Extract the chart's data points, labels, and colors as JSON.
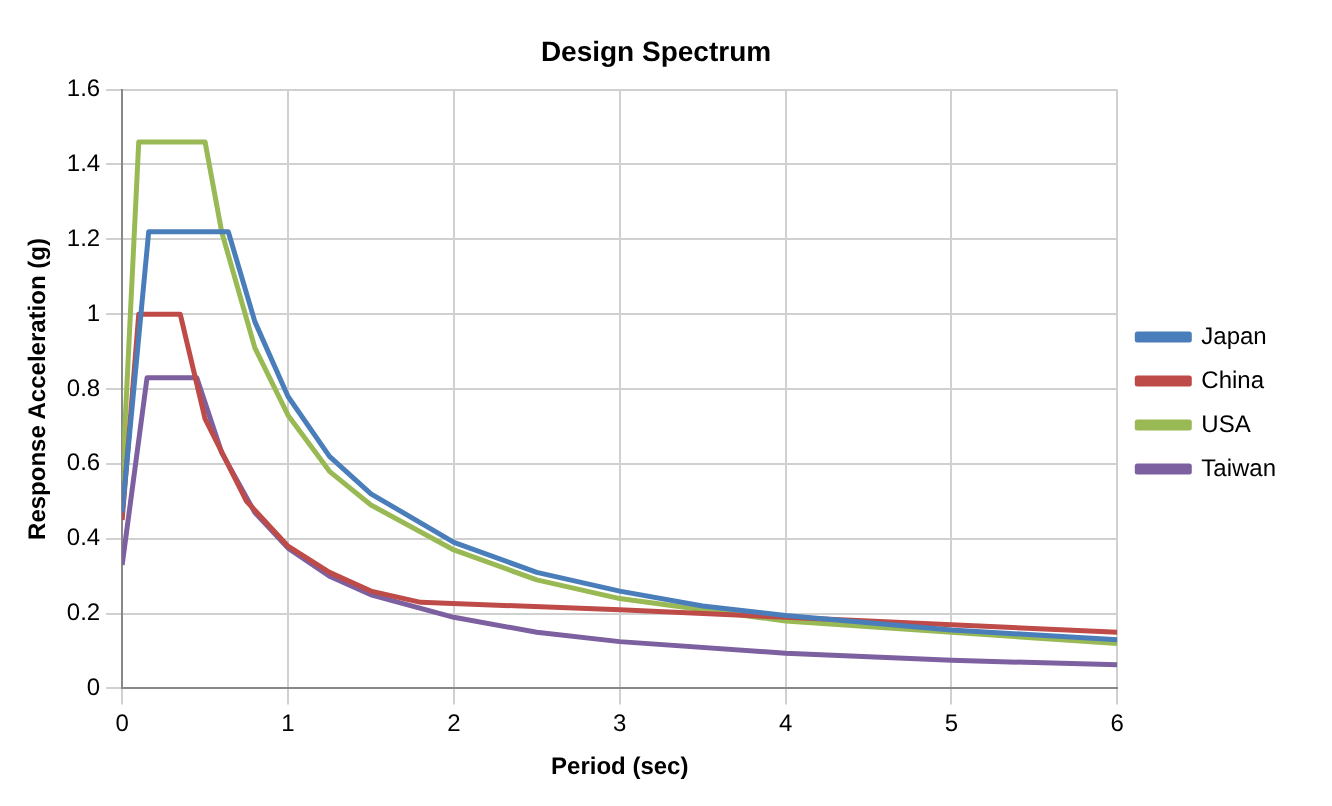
{
  "chart_data": {
    "type": "line",
    "title": "Design Spectrum",
    "xlabel": "Period (sec)",
    "ylabel": "Response Acceleration (g)",
    "xlim": [
      0,
      6
    ],
    "xticks": [
      0,
      1,
      2,
      3,
      4,
      5,
      6
    ],
    "ylim": [
      0,
      1.6
    ],
    "yticks": [
      0,
      0.2,
      0.4,
      0.6,
      0.8,
      1,
      1.2,
      1.4,
      1.6
    ],
    "grid": true,
    "legend": "right",
    "marker": "none",
    "series": [
      {
        "name": "Japan",
        "color": "#4a7ebb",
        "x": [
          0,
          0.16,
          0.64,
          0.8,
          1,
          1.25,
          1.5,
          2,
          2.5,
          3,
          3.5,
          4,
          5,
          6
        ],
        "values": [
          0.47,
          1.22,
          1.22,
          0.98,
          0.78,
          0.62,
          0.52,
          0.39,
          0.31,
          0.26,
          0.22,
          0.195,
          0.156,
          0.13
        ]
      },
      {
        "name": "China",
        "color": "#be4b48",
        "x": [
          0,
          0.1,
          0.35,
          0.5,
          0.75,
          1,
          1.25,
          1.5,
          1.8,
          3,
          4,
          5,
          6
        ],
        "values": [
          0.45,
          1.0,
          1.0,
          0.72,
          0.5,
          0.38,
          0.31,
          0.26,
          0.23,
          0.21,
          0.19,
          0.17,
          0.15
        ]
      },
      {
        "name": "USA",
        "color": "#98b954",
        "x": [
          0,
          0.1,
          0.5,
          0.6,
          0.8,
          1,
          1.25,
          1.5,
          2,
          2.5,
          3,
          3.5,
          4,
          5,
          6
        ],
        "values": [
          0.55,
          1.46,
          1.46,
          1.22,
          0.91,
          0.73,
          0.58,
          0.49,
          0.37,
          0.29,
          0.24,
          0.21,
          0.18,
          0.15,
          0.12
        ]
      },
      {
        "name": "Taiwan",
        "color": "#7d60a0",
        "x": [
          0,
          0.15,
          0.45,
          0.6,
          0.8,
          1,
          1.25,
          1.5,
          2,
          2.5,
          3,
          4,
          5,
          6
        ],
        "values": [
          0.33,
          0.83,
          0.83,
          0.63,
          0.47,
          0.375,
          0.3,
          0.25,
          0.19,
          0.15,
          0.125,
          0.094,
          0.075,
          0.063
        ]
      }
    ]
  }
}
